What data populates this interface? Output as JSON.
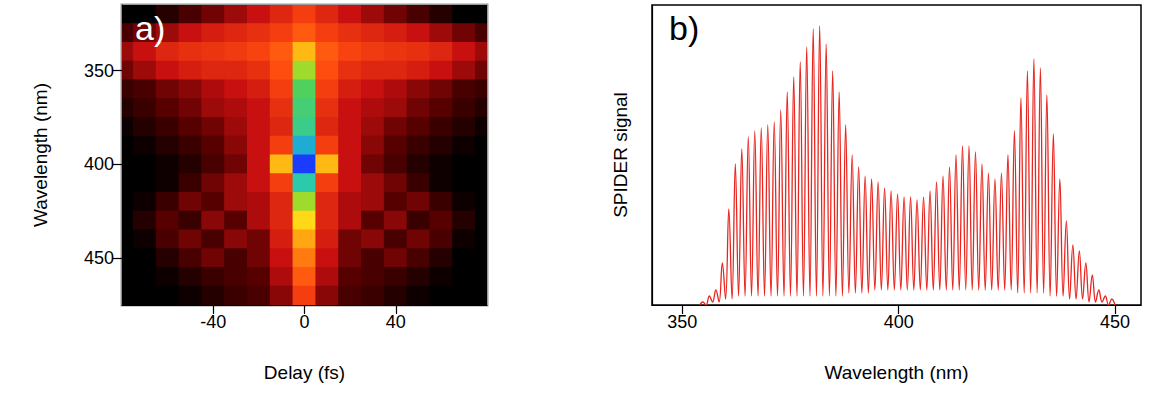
{
  "chart_data": [
    {
      "type": "heatmap",
      "title": "a)",
      "x_label": "Delay (fs)",
      "y_label": "Wavelength (nm)",
      "x": [
        -80,
        -70,
        -60,
        -50,
        -40,
        -30,
        -20,
        -10,
        0,
        10,
        20,
        30,
        40,
        50,
        60,
        70,
        80
      ],
      "y": [
        320,
        330,
        340,
        350,
        360,
        370,
        380,
        390,
        400,
        410,
        420,
        430,
        440,
        450,
        460,
        470
      ],
      "z": [
        [
          0,
          0,
          0.05,
          0.1,
          0.15,
          0.2,
          0.25,
          0.3,
          0.35,
          0.3,
          0.25,
          0.2,
          0.15,
          0.1,
          0.05,
          0,
          0
        ],
        [
          0.1,
          0.15,
          0.2,
          0.25,
          0.28,
          0.3,
          0.32,
          0.35,
          0.4,
          0.35,
          0.32,
          0.3,
          0.28,
          0.25,
          0.2,
          0.15,
          0.1
        ],
        [
          0.2,
          0.25,
          0.3,
          0.32,
          0.33,
          0.34,
          0.36,
          0.4,
          0.55,
          0.4,
          0.36,
          0.34,
          0.33,
          0.32,
          0.3,
          0.25,
          0.2
        ],
        [
          0.15,
          0.2,
          0.25,
          0.28,
          0.3,
          0.3,
          0.32,
          0.38,
          0.7,
          0.38,
          0.32,
          0.3,
          0.3,
          0.28,
          0.25,
          0.2,
          0.15
        ],
        [
          0.08,
          0.1,
          0.15,
          0.18,
          0.22,
          0.25,
          0.28,
          0.35,
          0.78,
          0.35,
          0.28,
          0.25,
          0.22,
          0.18,
          0.15,
          0.1,
          0.08
        ],
        [
          0.05,
          0.08,
          0.12,
          0.15,
          0.2,
          0.22,
          0.25,
          0.32,
          0.8,
          0.32,
          0.25,
          0.22,
          0.2,
          0.15,
          0.12,
          0.08,
          0.05
        ],
        [
          0.02,
          0.05,
          0.08,
          0.12,
          0.15,
          0.2,
          0.25,
          0.3,
          0.82,
          0.3,
          0.25,
          0.2,
          0.15,
          0.12,
          0.08,
          0.05,
          0.02
        ],
        [
          0,
          0.02,
          0.05,
          0.08,
          0.12,
          0.18,
          0.25,
          0.35,
          0.9,
          0.35,
          0.25,
          0.18,
          0.12,
          0.08,
          0.05,
          0.02,
          0
        ],
        [
          0,
          0,
          0.02,
          0.05,
          0.1,
          0.15,
          0.25,
          0.55,
          1.0,
          0.55,
          0.25,
          0.15,
          0.1,
          0.05,
          0.02,
          0,
          0
        ],
        [
          0,
          0,
          0.02,
          0.08,
          0.15,
          0.2,
          0.25,
          0.35,
          0.85,
          0.35,
          0.25,
          0.2,
          0.15,
          0.08,
          0.02,
          0,
          0
        ],
        [
          0,
          0.02,
          0.08,
          0.15,
          0.12,
          0.2,
          0.22,
          0.3,
          0.7,
          0.3,
          0.22,
          0.2,
          0.12,
          0.15,
          0.08,
          0.02,
          0
        ],
        [
          0,
          0.05,
          0.12,
          0.08,
          0.18,
          0.12,
          0.22,
          0.3,
          0.6,
          0.3,
          0.22,
          0.12,
          0.18,
          0.08,
          0.12,
          0.05,
          0
        ],
        [
          0,
          0.02,
          0.1,
          0.15,
          0.1,
          0.18,
          0.15,
          0.28,
          0.52,
          0.28,
          0.15,
          0.18,
          0.1,
          0.15,
          0.1,
          0.02,
          0
        ],
        [
          0,
          0,
          0.05,
          0.1,
          0.15,
          0.1,
          0.15,
          0.25,
          0.45,
          0.25,
          0.15,
          0.1,
          0.15,
          0.1,
          0.05,
          0,
          0
        ],
        [
          0,
          0,
          0.02,
          0.05,
          0.08,
          0.1,
          0.12,
          0.22,
          0.4,
          0.22,
          0.12,
          0.1,
          0.08,
          0.05,
          0.02,
          0,
          0
        ],
        [
          0,
          0,
          0,
          0.02,
          0.05,
          0.08,
          0.1,
          0.18,
          0.35,
          0.18,
          0.1,
          0.08,
          0.05,
          0.02,
          0,
          0,
          0
        ]
      ],
      "zlim": [
        0,
        1
      ],
      "xlim": [
        -80,
        80
      ],
      "xticks": [
        -40,
        0,
        40
      ],
      "ylim": [
        475,
        315
      ],
      "yticks": [
        350,
        400,
        450
      ],
      "grid": false
    },
    {
      "type": "line",
      "title": "b)",
      "x_label": "Wavelength (nm)",
      "y_label": "SPIDER signal",
      "x": [
        354,
        354.75,
        355.5,
        356.25,
        357,
        357.75,
        358.5,
        359.25,
        360,
        360.75,
        361.5,
        362.25,
        363,
        363.75,
        364.5,
        365.25,
        366,
        366.75,
        367.5,
        368.25,
        369,
        369.75,
        370.5,
        371.25,
        372,
        372.75,
        373.5,
        374.25,
        375,
        375.75,
        376.5,
        377.25,
        378,
        378.75,
        379.5,
        380.25,
        381,
        381.75,
        382.5,
        383.25,
        384,
        384.75,
        385.5,
        386.25,
        387,
        387.75,
        388.5,
        389.25,
        390,
        390.75,
        391.5,
        392.25,
        393,
        393.75,
        394.5,
        395.25,
        396,
        396.75,
        397.5,
        398.25,
        399,
        399.75,
        400.5,
        401.25,
        402,
        402.75,
        403.5,
        404.25,
        405,
        405.75,
        406.5,
        407.25,
        408,
        408.75,
        409.5,
        410.25,
        411,
        411.75,
        412.5,
        413.25,
        414,
        414.75,
        415.5,
        416.25,
        417,
        417.75,
        418.5,
        419.25,
        420,
        420.75,
        421.5,
        422.25,
        423,
        423.75,
        424.5,
        425.25,
        426,
        426.75,
        427.5,
        428.25,
        429,
        429.75,
        430.5,
        431.25,
        432,
        432.75,
        433.5,
        434.25,
        435,
        435.75,
        436.5,
        437.25,
        438,
        438.75,
        439.5,
        440.25,
        441,
        441.75,
        442.5,
        443.25,
        444,
        444.75,
        445.5,
        446.25,
        447,
        447.75,
        448.5,
        449.25,
        450
      ],
      "values": [
        0,
        0.01,
        0,
        0.03,
        0.01,
        0.05,
        0.01,
        0.14,
        0.02,
        0.32,
        0.02,
        0.47,
        0.03,
        0.52,
        0.03,
        0.56,
        0.03,
        0.58,
        0.03,
        0.59,
        0.03,
        0.6,
        0.03,
        0.61,
        0.03,
        0.65,
        0.03,
        0.71,
        0.03,
        0.76,
        0.03,
        0.81,
        0.03,
        0.86,
        0.03,
        0.92,
        0.03,
        0.93,
        0.03,
        0.87,
        0.03,
        0.78,
        0.03,
        0.71,
        0.03,
        0.6,
        0.04,
        0.5,
        0.04,
        0.46,
        0.04,
        0.43,
        0.04,
        0.42,
        0.05,
        0.41,
        0.05,
        0.39,
        0.05,
        0.38,
        0.05,
        0.37,
        0.05,
        0.36,
        0.05,
        0.36,
        0.05,
        0.35,
        0.05,
        0.36,
        0.05,
        0.38,
        0.05,
        0.41,
        0.05,
        0.43,
        0.05,
        0.46,
        0.05,
        0.5,
        0.05,
        0.53,
        0.05,
        0.53,
        0.05,
        0.51,
        0.05,
        0.47,
        0.05,
        0.44,
        0.05,
        0.42,
        0.05,
        0.44,
        0.05,
        0.5,
        0.05,
        0.58,
        0.04,
        0.69,
        0.04,
        0.78,
        0.04,
        0.82,
        0.04,
        0.79,
        0.04,
        0.7,
        0.03,
        0.57,
        0.03,
        0.42,
        0.03,
        0.28,
        0.02,
        0.2,
        0.02,
        0.18,
        0.02,
        0.14,
        0.01,
        0.1,
        0.01,
        0.05,
        0.01,
        0.03,
        0,
        0.02,
        0
      ],
      "color": "#e8251f",
      "xlim": [
        343,
        456
      ],
      "xticks": [
        350,
        400,
        450
      ],
      "ylim": [
        0,
        1
      ],
      "tick_labels": "x",
      "grid": false
    }
  ]
}
